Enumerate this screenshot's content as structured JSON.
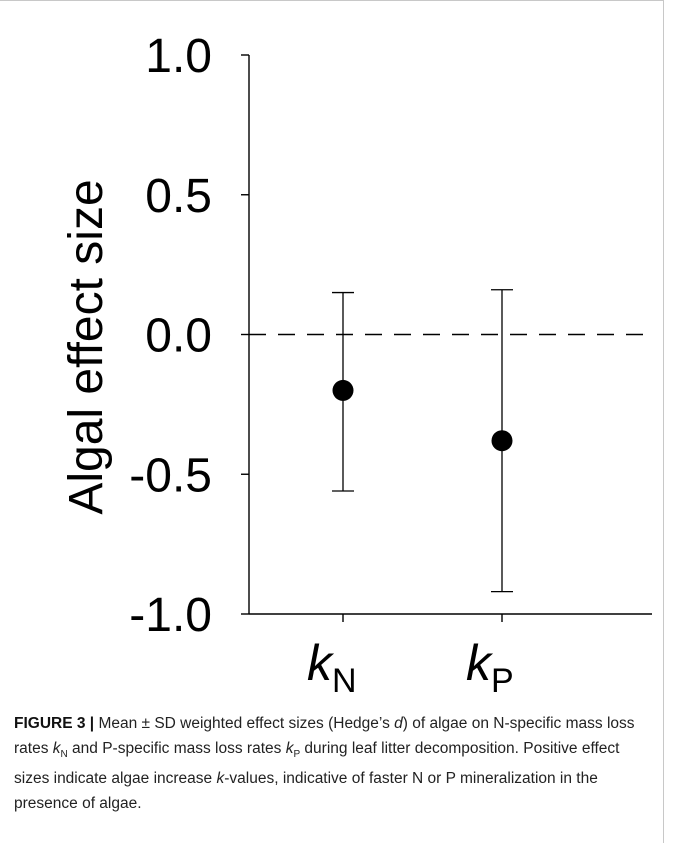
{
  "chart_data": {
    "type": "scatter",
    "categories": [
      "N",
      "P"
    ],
    "series": [
      {
        "points": [
          {
            "category": "N",
            "mean": -0.2,
            "lower": -0.56,
            "upper": 0.15
          },
          {
            "category": "P",
            "mean": -0.38,
            "lower": -0.92,
            "upper": 0.16
          }
        ]
      }
    ],
    "ylabel": "Algal effect size",
    "ylim": [
      -1.0,
      1.0
    ],
    "yticks": [
      "1.0",
      "0.5",
      "0.0",
      "-0.5",
      "-1.0"
    ],
    "xtick_labels": [
      {
        "main": "k",
        "sub": "N"
      },
      {
        "main": "k",
        "sub": "P"
      }
    ],
    "reference_line": {
      "y": 0.0,
      "style": "dashed"
    },
    "grid": false,
    "colors": {
      "marker": "#000000",
      "axis": "#000000"
    }
  },
  "caption": {
    "label": "FIGURE 3 |",
    "seg1": " Mean ± SD weighted effect sizes (Hedge’s ",
    "seg1_italic": "d",
    "seg2": ") of algae on N-specific mass loss rates ",
    "k1": "k",
    "k1_sub": "N",
    "seg3": " and P-specific mass loss rates ",
    "k2": "k",
    "k2_sub": "P",
    "seg4": " during leaf litter decomposition. Positive effect sizes indicate algae increase ",
    "k3": "k",
    "seg5": "-values, indicative of faster N or P mineralization in the presence of algae."
  }
}
